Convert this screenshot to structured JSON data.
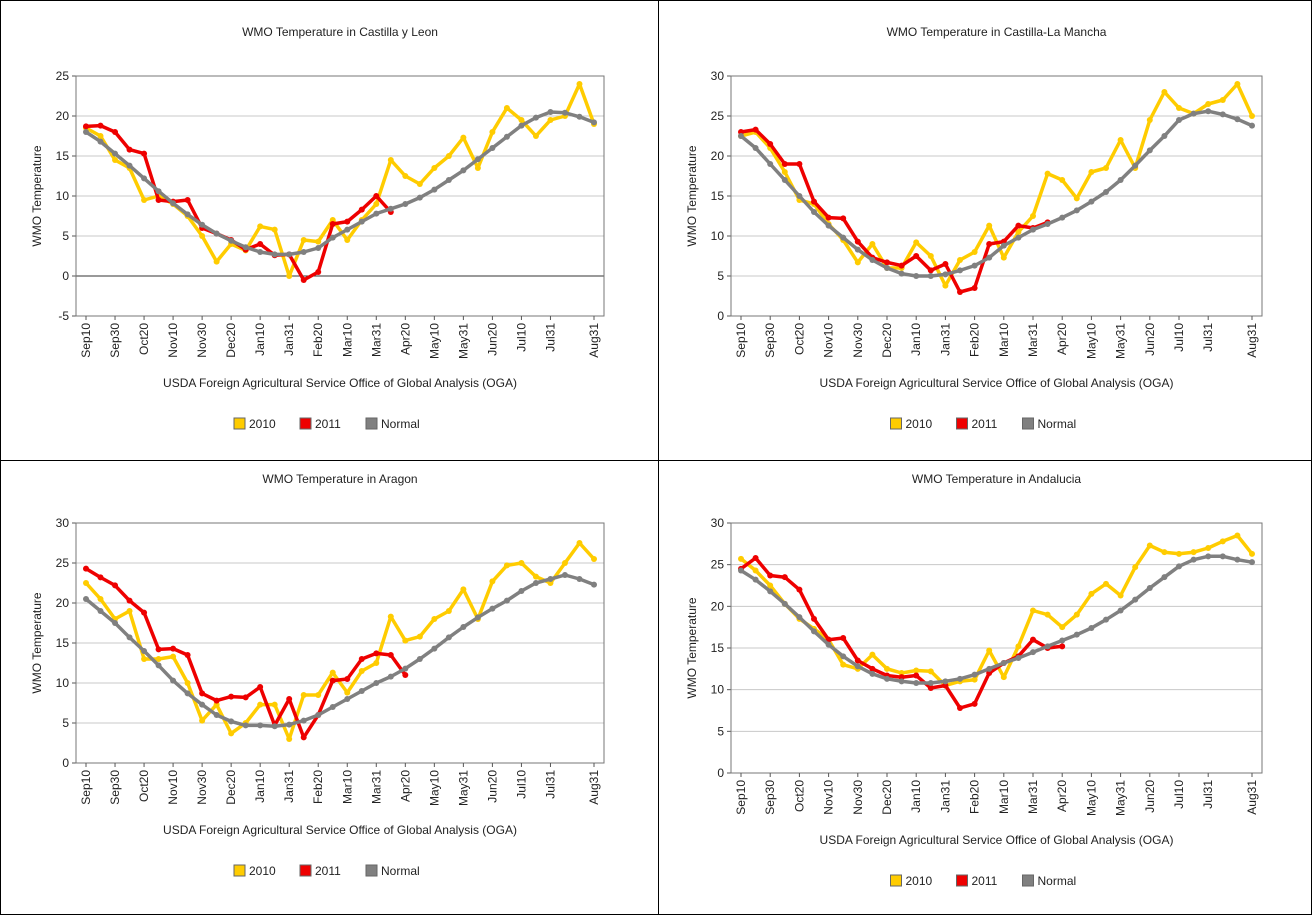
{
  "chart_data": [
    {
      "type": "line",
      "title": "WMO Temperature in Castilla y Leon",
      "ylabel": "WMO Temperature",
      "xlabel": "USDA Foreign Agricultural Service Office of Global Analysis (OGA)",
      "categories": [
        "Sep10",
        null,
        "Sep30",
        null,
        "Oct20",
        null,
        "Nov10",
        null,
        "Nov30",
        null,
        "Dec20",
        null,
        "Jan10",
        null,
        "Jan31",
        null,
        "Feb20",
        null,
        "Mar10",
        null,
        "Mar31",
        null,
        "Apr20",
        null,
        "May10",
        null,
        "May31",
        null,
        "Jun20",
        null,
        "Jul10",
        null,
        "Jul31",
        null,
        null,
        "Aug31"
      ],
      "ylim": [
        -5,
        25
      ],
      "yticks": [
        -5,
        0,
        5,
        10,
        15,
        20,
        25
      ],
      "grid": true,
      "legend": "bottom",
      "series": [
        {
          "name": "2010",
          "color": "#ffcc00",
          "values": [
            18.5,
            17.5,
            14.5,
            13.5,
            9.5,
            10,
            9,
            7.5,
            5,
            1.8,
            4,
            3.2,
            6.2,
            5.8,
            0,
            4.5,
            4.3,
            7,
            4.5,
            7,
            9,
            14.5,
            12.5,
            11.5,
            13.5,
            15,
            17.3,
            13.5,
            18,
            21,
            19.5,
            17.5,
            19.5,
            20,
            24,
            19
          ]
        },
        {
          "name": "2011",
          "color": "#ee0000",
          "values": [
            18.7,
            18.8,
            18,
            15.8,
            15.3,
            9.5,
            9.3,
            9.5,
            6,
            5.3,
            4.5,
            3.3,
            4,
            2.6,
            2.7,
            -0.5,
            0.5,
            6.5,
            6.8,
            8.3,
            10,
            8,
            null,
            null,
            null,
            null,
            null,
            null,
            null,
            null,
            null,
            null,
            null,
            null,
            null,
            null
          ]
        },
        {
          "name": "Normal",
          "color": "#808080",
          "values": [
            18,
            16.8,
            15.3,
            13.8,
            12.2,
            10.6,
            9.1,
            7.7,
            6.4,
            5.3,
            4.4,
            3.6,
            3,
            2.7,
            2.7,
            3,
            3.5,
            4.8,
            5.8,
            6.8,
            7.8,
            8.4,
            9,
            9.8,
            10.8,
            12,
            13.2,
            14.6,
            16,
            17.4,
            18.8,
            19.8,
            20.5,
            20.4,
            19.9,
            19.2
          ]
        }
      ]
    },
    {
      "type": "line",
      "title": "WMO Temperature in Castilla-La Mancha",
      "ylabel": "WMO Temperature",
      "xlabel": "USDA Foreign Agricultural Service Office of Global Analysis (OGA)",
      "categories": [
        "Sep10",
        null,
        "Sep30",
        null,
        "Oct20",
        null,
        "Nov10",
        null,
        "Nov30",
        null,
        "Dec20",
        null,
        "Jan10",
        null,
        "Jan31",
        null,
        "Feb20",
        null,
        "Mar10",
        null,
        "Mar31",
        null,
        "Apr20",
        null,
        "May10",
        null,
        "May31",
        null,
        "Jun20",
        null,
        "Jul10",
        null,
        "Jul31",
        null,
        null,
        "Aug31"
      ],
      "ylim": [
        0,
        30
      ],
      "yticks": [
        0,
        5,
        10,
        15,
        20,
        25,
        30
      ],
      "grid": true,
      "legend": "bottom",
      "series": [
        {
          "name": "2010",
          "color": "#ffcc00",
          "values": [
            22.5,
            23,
            21,
            18,
            14.5,
            14,
            11.5,
            9.5,
            6.7,
            9,
            6,
            6,
            9.2,
            7.5,
            3.8,
            7,
            8,
            11.3,
            7.3,
            10.5,
            12.5,
            17.8,
            17,
            14.7,
            18,
            18.5,
            22,
            18.5,
            24.5,
            28,
            26,
            25.3,
            26.5,
            27,
            29,
            25
          ]
        },
        {
          "name": "2011",
          "color": "#ee0000",
          "values": [
            23,
            23.3,
            21.5,
            19,
            19,
            14.3,
            12.3,
            12.2,
            9.3,
            7.3,
            6.7,
            6.3,
            7.5,
            5.7,
            6.5,
            3,
            3.5,
            9,
            9.3,
            11.3,
            11,
            11.7,
            null,
            null,
            null,
            null,
            null,
            null,
            null,
            null,
            null,
            null,
            null,
            null,
            null,
            null
          ]
        },
        {
          "name": "Normal",
          "color": "#808080",
          "values": [
            22.5,
            21,
            19,
            17,
            15,
            13,
            11.3,
            9.8,
            8.3,
            7,
            6,
            5.3,
            5,
            5,
            5.2,
            5.7,
            6.3,
            7.3,
            8.8,
            9.8,
            10.8,
            11.5,
            12.3,
            13.2,
            14.3,
            15.5,
            17,
            18.8,
            20.7,
            22.5,
            24.5,
            25.3,
            25.6,
            25.2,
            24.6,
            23.8
          ]
        }
      ]
    },
    {
      "type": "line",
      "title": "WMO Temperature in Aragon",
      "ylabel": "WMO Temperature",
      "xlabel": "USDA Foreign Agricultural Service Office of Global Analysis (OGA)",
      "categories": [
        "Sep10",
        null,
        "Sep30",
        null,
        "Oct20",
        null,
        "Nov10",
        null,
        "Nov30",
        null,
        "Dec20",
        null,
        "Jan10",
        null,
        "Jan31",
        null,
        "Feb20",
        null,
        "Mar10",
        null,
        "Mar31",
        null,
        "Apr20",
        null,
        "May10",
        null,
        "May31",
        null,
        "Jun20",
        null,
        "Jul10",
        null,
        "Jul31",
        null,
        null,
        "Aug31"
      ],
      "ylim": [
        0,
        30
      ],
      "yticks": [
        0,
        5,
        10,
        15,
        20,
        25,
        30
      ],
      "grid": true,
      "legend": "bottom",
      "series": [
        {
          "name": "2010",
          "color": "#ffcc00",
          "values": [
            22.5,
            20.5,
            18,
            19,
            13,
            13,
            13.3,
            10,
            5.3,
            7.3,
            3.7,
            5,
            7.3,
            7.3,
            3,
            8.5,
            8.5,
            11.3,
            8.8,
            11.5,
            12.5,
            18.3,
            15.3,
            15.8,
            18,
            19,
            21.7,
            18,
            22.7,
            24.7,
            25,
            23.3,
            22.5,
            25,
            27.5,
            25.5
          ]
        },
        {
          "name": "2011",
          "color": "#ee0000",
          "values": [
            24.3,
            23.2,
            22.2,
            20.3,
            18.8,
            14.2,
            14.3,
            13.5,
            8.7,
            7.8,
            8.3,
            8.2,
            9.5,
            4.7,
            8,
            3.2,
            6,
            10.3,
            10.5,
            13,
            13.7,
            13.5,
            11,
            null,
            null,
            null,
            null,
            null,
            null,
            null,
            null,
            null,
            null,
            null,
            null,
            null
          ]
        },
        {
          "name": "Normal",
          "color": "#808080",
          "values": [
            20.5,
            19,
            17.5,
            15.7,
            14,
            12.2,
            10.3,
            8.7,
            7.3,
            6,
            5.2,
            4.7,
            4.7,
            4.6,
            4.8,
            5.3,
            6,
            7,
            8,
            9,
            10,
            10.8,
            11.8,
            13,
            14.3,
            15.7,
            17,
            18.2,
            19.3,
            20.3,
            21.5,
            22.5,
            23,
            23.5,
            23,
            22.3
          ]
        }
      ]
    },
    {
      "type": "line",
      "title": "WMO Temperature in Andalucia",
      "ylabel": "WMO Temperature",
      "xlabel": "USDA Foreign Agricultural Service Office of Global Analysis (OGA)",
      "categories": [
        "Sep10",
        null,
        "Sep30",
        null,
        "Oct20",
        null,
        "Nov10",
        null,
        "Nov30",
        null,
        "Dec20",
        null,
        "Jan10",
        null,
        "Jan31",
        null,
        "Feb20",
        null,
        "Mar10",
        null,
        "Mar31",
        null,
        "Apr20",
        null,
        "May10",
        null,
        "May31",
        null,
        "Jun20",
        null,
        "Jul10",
        null,
        "Jul31",
        null,
        null,
        "Aug31"
      ],
      "ylim": [
        0,
        30
      ],
      "yticks": [
        0,
        5,
        10,
        15,
        20,
        25,
        30
      ],
      "grid": true,
      "legend": "bottom",
      "series": [
        {
          "name": "2010",
          "color": "#ffcc00",
          "values": [
            25.7,
            24.3,
            22.5,
            20.3,
            18.5,
            17.3,
            16,
            13,
            12.5,
            14.2,
            12.5,
            12,
            12.3,
            12.2,
            10.5,
            11,
            11.2,
            14.7,
            11.5,
            15.2,
            19.5,
            19,
            17.5,
            19,
            21.5,
            22.7,
            21.3,
            24.7,
            27.3,
            26.5,
            26.3,
            26.5,
            27,
            27.8,
            28.5,
            26.3
          ]
        },
        {
          "name": "2011",
          "color": "#ee0000",
          "values": [
            24.5,
            25.8,
            23.7,
            23.5,
            22,
            18.5,
            16,
            16.2,
            13.5,
            12.5,
            11.7,
            11.5,
            11.7,
            10.2,
            10.5,
            7.8,
            8.3,
            12,
            13.2,
            14,
            16,
            15,
            15.2,
            null,
            null,
            null,
            null,
            null,
            null,
            null,
            null,
            null,
            null,
            null,
            null,
            null
          ]
        },
        {
          "name": "Normal",
          "color": "#808080",
          "values": [
            24.3,
            23.2,
            21.8,
            20.3,
            18.7,
            17,
            15.4,
            14,
            12.8,
            11.9,
            11.3,
            11,
            10.8,
            10.8,
            11,
            11.3,
            11.8,
            12.5,
            13.2,
            13.8,
            14.5,
            15.2,
            15.9,
            16.6,
            17.4,
            18.4,
            19.5,
            20.8,
            22.2,
            23.5,
            24.8,
            25.6,
            26,
            26,
            25.6,
            25.3
          ]
        }
      ]
    }
  ]
}
